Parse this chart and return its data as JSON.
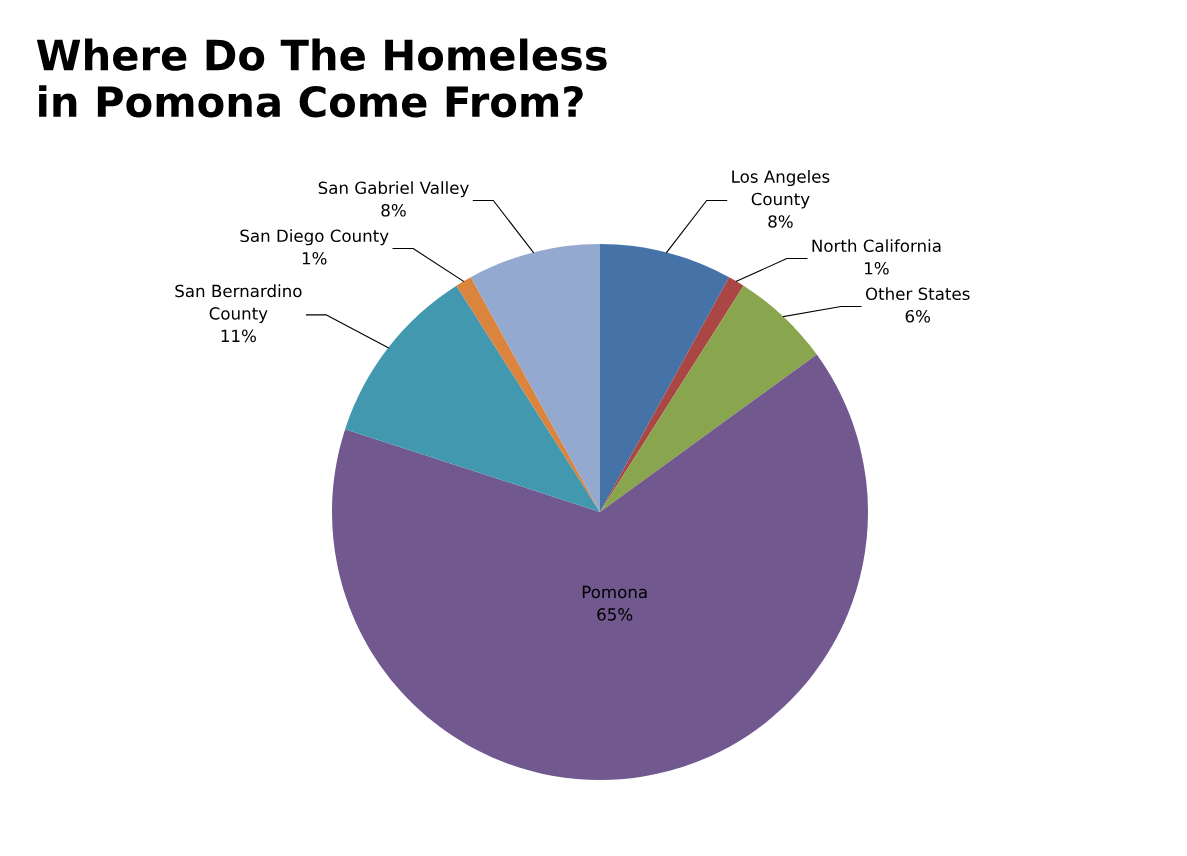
{
  "chart_data": {
    "type": "pie",
    "title": "Where Do The Homeless\nin Pomona Come From?",
    "categories": [
      "Los Angeles\nCounty",
      "North California",
      "Other States",
      "Pomona",
      "San Bernardino\nCounty",
      "San Diego County",
      "San Gabriel Valley"
    ],
    "values": [
      8,
      1,
      6,
      65,
      11,
      1,
      8
    ],
    "value_labels": [
      "8%",
      "1%",
      "6%",
      "65%",
      "11%",
      "1%",
      "8%"
    ],
    "colors": [
      "#4572a7",
      "#aa4643",
      "#89a54e",
      "#71588f",
      "#4198af",
      "#db843d",
      "#93a9cf"
    ],
    "legend": false
  }
}
